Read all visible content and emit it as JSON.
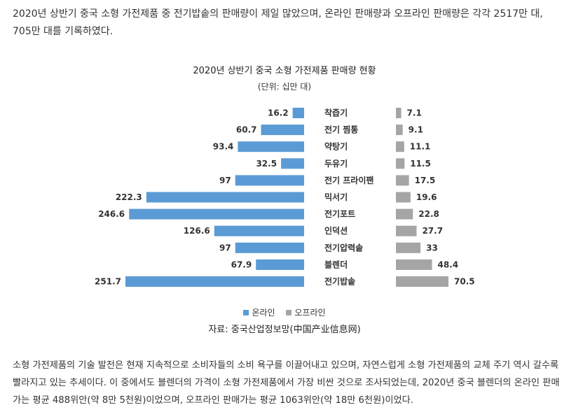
{
  "intro_text": "2020년 상반기 중국 소형 가전제품 중 전기밥솥의 판매량이 제일 많았으며, 온라인 판매량과 오프라인 판매량은 각각 2517만 대, 705만 대를 기록하였다.",
  "colors": {
    "online": "#5b9bd5",
    "offline": "#a5a5a5"
  },
  "chart_data": {
    "type": "bar",
    "title": "2020년 상반기 중국 소형 가전제품 판매량 현황",
    "unit": "(단위: 십만 대)",
    "categories": [
      "착즙기",
      "전기 찜통",
      "약탕기",
      "두유기",
      "전기 프라이팬",
      "믹서기",
      "전기포트",
      "인덕션",
      "전기압력솥",
      "블렌더",
      "전기밥솥"
    ],
    "series": [
      {
        "name": "온라인",
        "values": [
          16.2,
          60.7,
          93.4,
          32.5,
          97,
          222.3,
          246.6,
          126.6,
          97,
          67.9,
          251.7
        ]
      },
      {
        "name": "오프라인",
        "values": [
          7.1,
          9.1,
          11.1,
          11.5,
          17.5,
          19.6,
          22.8,
          27.7,
          33,
          48.4,
          70.5
        ]
      }
    ],
    "online_labels": [
      "16.2",
      "60.7",
      "93.4",
      "32.5",
      "97",
      "222.3",
      "246.6",
      "126.6",
      "97",
      "67.9",
      "251.7"
    ],
    "offline_labels": [
      "7.1",
      "9.1",
      "11.1",
      "11.5",
      "17.5",
      "19.6",
      "22.8",
      "27.7",
      "33",
      "48.4",
      "70.5"
    ],
    "legend_position": "bottom",
    "grid": false
  },
  "source_text": "자료: 중국산업정보망(中国产业信息网)",
  "outro_text": "소형 가전제품의 기술 발전은 현재 지속적으로 소비자들의 소비 욕구를 이끌어내고 있으며, 자연스럽게 소형 가전제품의 교체 주기 역시 갈수록 빨라지고 있는 추세이다. 이 중에서도 블렌더의 가격이 소형 가전제품에서 가장 비싼 것으로 조사되었는데, 2020년 중국 블렌더의 온라인 판매가는 평균 488위안(약 8만 5천원)이었으며, 오프라인 판매가는 평균 1063위안(약 18만 6천원)이었다."
}
